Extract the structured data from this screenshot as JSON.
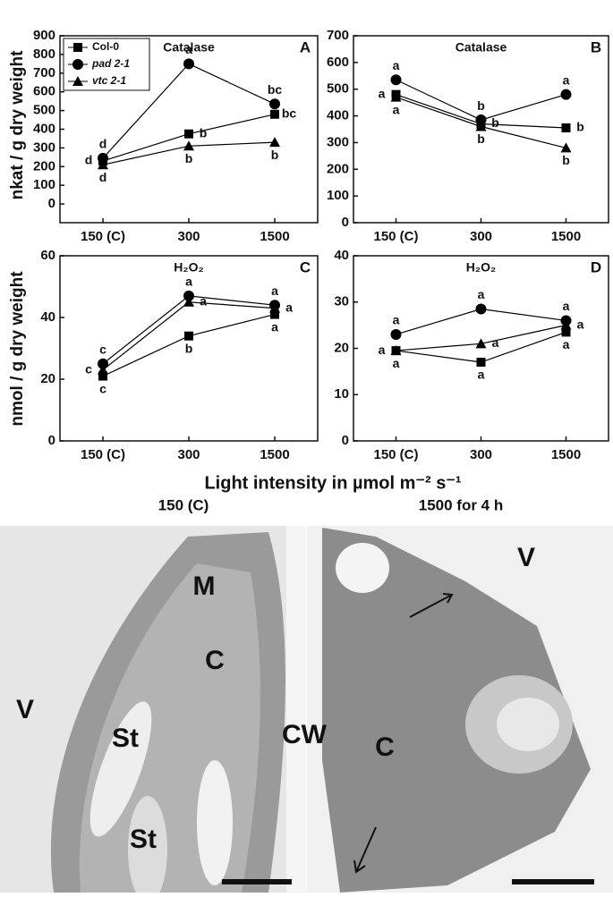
{
  "chart_data": [
    {
      "type": "line",
      "title": "Catalase",
      "panel": "A",
      "categories": [
        "150 (C)",
        "300",
        "1500"
      ],
      "ylim": [
        -100,
        900
      ],
      "yticks": [
        0,
        100,
        200,
        300,
        400,
        500,
        600,
        700,
        800,
        900
      ],
      "legend": true,
      "series": [
        {
          "name": "Col-0",
          "marker": "square",
          "color": "#000000",
          "values": [
            230,
            375,
            480
          ],
          "letters": [
            "d",
            "b",
            "bc"
          ]
        },
        {
          "name": "pad 2-1",
          "marker": "circle",
          "color": "#000000",
          "values": [
            245,
            750,
            535
          ],
          "letters": [
            "d",
            "a",
            "bc"
          ]
        },
        {
          "name": "vtc 2-1",
          "marker": "triangle",
          "color": "#000000",
          "values": [
            210,
            310,
            330
          ],
          "letters": [
            "d",
            "b",
            "b"
          ]
        }
      ]
    },
    {
      "type": "line",
      "title": "Catalase",
      "panel": "B",
      "categories": [
        "150 (C)",
        "300",
        "1500"
      ],
      "ylim": [
        0,
        700
      ],
      "yticks": [
        0,
        100,
        200,
        300,
        400,
        500,
        600,
        700
      ],
      "legend": false,
      "series": [
        {
          "name": "Col-0",
          "marker": "square",
          "color": "#000000",
          "values": [
            480,
            370,
            355
          ],
          "letters": [
            "a",
            "b",
            "b"
          ]
        },
        {
          "name": "pad 2-1",
          "marker": "circle",
          "color": "#000000",
          "values": [
            535,
            385,
            480
          ],
          "letters": [
            "a",
            "b",
            "a"
          ]
        },
        {
          "name": "vtc 2-1",
          "marker": "triangle",
          "color": "#000000",
          "values": [
            470,
            360,
            280
          ],
          "letters": [
            "a",
            "b",
            "b"
          ]
        }
      ]
    },
    {
      "type": "line",
      "title": "H₂O₂",
      "panel": "C",
      "categories": [
        "150 (C)",
        "300",
        "1500"
      ],
      "ylim": [
        0,
        60
      ],
      "yticks": [
        0,
        20,
        40,
        60
      ],
      "legend": false,
      "series": [
        {
          "name": "Col-0",
          "marker": "square",
          "color": "#000000",
          "values": [
            21,
            34,
            41
          ],
          "letters": [
            "c",
            "b",
            "a"
          ]
        },
        {
          "name": "pad 2-1",
          "marker": "circle",
          "color": "#000000",
          "values": [
            25,
            47,
            44
          ],
          "letters": [
            "c",
            "a",
            "a"
          ]
        },
        {
          "name": "vtc 2-1",
          "marker": "triangle",
          "color": "#000000",
          "values": [
            23,
            45,
            43
          ],
          "letters": [
            "c",
            "a",
            "a"
          ]
        }
      ]
    },
    {
      "type": "line",
      "title": "H₂O₂",
      "panel": "D",
      "categories": [
        "150 (C)",
        "300",
        "1500"
      ],
      "ylim": [
        0,
        40
      ],
      "yticks": [
        0,
        10,
        20,
        30,
        40
      ],
      "legend": false,
      "series": [
        {
          "name": "Col-0",
          "marker": "square",
          "color": "#000000",
          "values": [
            19.5,
            17,
            23.5
          ],
          "letters": [
            "a",
            "a",
            "a"
          ]
        },
        {
          "name": "pad 2-1",
          "marker": "circle",
          "color": "#000000",
          "values": [
            23,
            28.5,
            26
          ],
          "letters": [
            "a",
            "a",
            "a"
          ]
        },
        {
          "name": "vtc 2-1",
          "marker": "triangle",
          "color": "#000000",
          "values": [
            19.5,
            21,
            25
          ],
          "letters": [
            "a",
            "a",
            "a"
          ]
        }
      ]
    }
  ],
  "figure": {
    "y_label_top": "nkat / g dry weight",
    "y_label_bottom": "nmol / g dry weight",
    "x_label": "Light intensity in µmol m⁻² s⁻¹",
    "micrograph": {
      "left_title": "150 (C)",
      "right_title": "1500 for 4 h",
      "left_labels": [
        "V",
        "M",
        "C",
        "St",
        "CW",
        "St"
      ],
      "right_labels": [
        "V",
        "C"
      ]
    }
  }
}
